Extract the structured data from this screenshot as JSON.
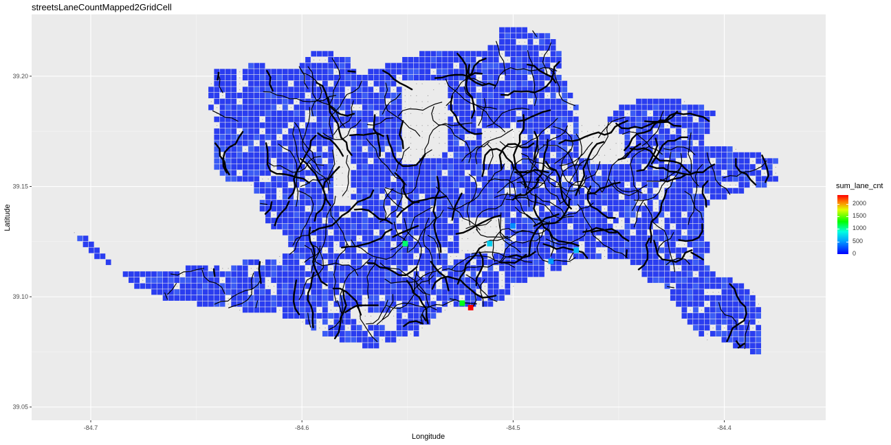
{
  "chart_data": {
    "type": "heatmap",
    "title": "streetsLaneCountMapped2GridCell",
    "xlabel": "Longitude",
    "ylabel": "Latitude",
    "xlim": [
      -84.728,
      -84.352
    ],
    "ylim": [
      39.044,
      39.228
    ],
    "x_ticks": [
      -84.7,
      -84.6,
      -84.5,
      -84.4
    ],
    "x_tick_labels": [
      "-84.7",
      "-84.6",
      "-84.5",
      "-84.4"
    ],
    "y_ticks": [
      39.05,
      39.1,
      39.15,
      39.2
    ],
    "y_tick_labels": [
      "39.05",
      "39.10",
      "39.15",
      "39.20"
    ],
    "grid": true,
    "legend_placement": "right",
    "legend": {
      "title": "sum_lane_cnt",
      "breaks": [
        0,
        500,
        1000,
        1500,
        2000
      ],
      "labels": [
        "0",
        "500",
        "1000",
        "1500",
        "2000"
      ],
      "range": [
        0,
        2350
      ]
    },
    "colors": {
      "low": "#0000ff",
      "mid": "#00ff00",
      "high": "#ff0000",
      "panel": "#ebebeb",
      "grid": "#ffffff",
      "street": "#000000"
    },
    "cell_size": 0.0027,
    "coverage_polygon": [
      [
        -84.71,
        39.131
      ],
      [
        -84.7,
        39.125
      ],
      [
        -84.69,
        39.114
      ],
      [
        -84.68,
        39.105
      ],
      [
        -84.665,
        39.099
      ],
      [
        -84.645,
        39.096
      ],
      [
        -84.625,
        39.093
      ],
      [
        -84.607,
        39.091
      ],
      [
        -84.6,
        39.088
      ],
      [
        -84.585,
        39.081
      ],
      [
        -84.568,
        39.077
      ],
      [
        -84.555,
        39.079
      ],
      [
        -84.545,
        39.083
      ],
      [
        -84.538,
        39.09
      ],
      [
        -84.53,
        39.094
      ],
      [
        -84.518,
        39.094
      ],
      [
        -84.506,
        39.098
      ],
      [
        -84.496,
        39.106
      ],
      [
        -84.482,
        39.111
      ],
      [
        -84.47,
        39.116
      ],
      [
        -84.455,
        39.118
      ],
      [
        -84.445,
        39.116
      ],
      [
        -84.436,
        39.107
      ],
      [
        -84.428,
        39.105
      ],
      [
        -84.425,
        39.098
      ],
      [
        -84.418,
        39.09
      ],
      [
        -84.412,
        39.082
      ],
      [
        -84.408,
        39.079
      ],
      [
        -84.405,
        39.082
      ],
      [
        -84.397,
        39.078
      ],
      [
        -84.388,
        39.075
      ],
      [
        -84.383,
        39.075
      ],
      [
        -84.383,
        39.098
      ],
      [
        -84.388,
        39.104
      ],
      [
        -84.397,
        39.108
      ],
      [
        -84.403,
        39.108
      ],
      [
        -84.41,
        39.117
      ],
      [
        -84.405,
        39.123
      ],
      [
        -84.41,
        39.128
      ],
      [
        -84.41,
        39.138
      ],
      [
        -84.407,
        39.143
      ],
      [
        -84.375,
        39.152
      ],
      [
        -84.373,
        39.162
      ],
      [
        -84.395,
        39.167
      ],
      [
        -84.41,
        39.168
      ],
      [
        -84.405,
        39.183
      ],
      [
        -84.415,
        39.188
      ],
      [
        -84.432,
        39.19
      ],
      [
        -84.45,
        39.187
      ],
      [
        -84.455,
        39.18
      ],
      [
        -84.468,
        39.178
      ],
      [
        -84.47,
        39.188
      ],
      [
        -84.478,
        39.202
      ],
      [
        -84.476,
        39.21
      ],
      [
        -84.485,
        39.22
      ],
      [
        -84.505,
        39.222
      ],
      [
        -84.512,
        39.212
      ],
      [
        -84.52,
        39.21
      ],
      [
        -84.53,
        39.212
      ],
      [
        -84.545,
        39.21
      ],
      [
        -84.56,
        39.205
      ],
      [
        -84.573,
        39.201
      ],
      [
        -84.578,
        39.208
      ],
      [
        -84.592,
        39.212
      ],
      [
        -84.603,
        39.204
      ],
      [
        -84.623,
        39.205
      ],
      [
        -84.64,
        39.203
      ],
      [
        -84.644,
        39.195
      ],
      [
        -84.642,
        39.175
      ],
      [
        -84.642,
        39.16
      ],
      [
        -84.635,
        39.153
      ],
      [
        -84.622,
        39.15
      ],
      [
        -84.62,
        39.14
      ],
      [
        -84.615,
        39.132
      ],
      [
        -84.608,
        39.128
      ],
      [
        -84.603,
        39.12
      ],
      [
        -84.625,
        39.116
      ],
      [
        -84.64,
        39.113
      ],
      [
        -84.655,
        39.113
      ],
      [
        -84.68,
        39.11
      ],
      [
        -84.698,
        39.118
      ],
      [
        -84.707,
        39.126
      ],
      [
        -84.712,
        39.132
      ]
    ],
    "interior_gaps": [
      [
        [
          -84.585,
          39.175
        ],
        [
          -84.578,
          39.175
        ],
        [
          -84.575,
          39.14
        ],
        [
          -84.585,
          39.14
        ]
      ],
      [
        [
          -84.552,
          39.198
        ],
        [
          -84.532,
          39.198
        ],
        [
          -84.53,
          39.165
        ],
        [
          -84.552,
          39.16
        ]
      ],
      [
        [
          -84.515,
          39.175
        ],
        [
          -84.498,
          39.178
        ],
        [
          -84.495,
          39.16
        ],
        [
          -84.515,
          39.16
        ]
      ],
      [
        [
          -84.578,
          39.095
        ],
        [
          -84.555,
          39.092
        ],
        [
          -84.555,
          39.085
        ],
        [
          -84.578,
          39.089
        ]
      ],
      [
        [
          -84.47,
          39.178
        ],
        [
          -84.45,
          39.18
        ],
        [
          -84.445,
          39.16
        ],
        [
          -84.47,
          39.162
        ]
      ],
      [
        [
          -84.525,
          39.135
        ],
        [
          -84.505,
          39.135
        ],
        [
          -84.505,
          39.12
        ],
        [
          -84.525,
          39.118
        ]
      ]
    ],
    "hotspots": [
      {
        "x": -84.52,
        "y": 39.095,
        "value": 2350
      },
      {
        "x": -84.524,
        "y": 39.097,
        "value": 1250
      },
      {
        "x": -84.551,
        "y": 39.124,
        "value": 1100
      },
      {
        "x": -84.511,
        "y": 39.124,
        "value": 700
      },
      {
        "x": -84.47,
        "y": 39.121,
        "value": 600
      },
      {
        "x": -84.482,
        "y": 39.116,
        "value": 500
      },
      {
        "x": -84.5,
        "y": 39.132,
        "value": 450
      }
    ]
  }
}
